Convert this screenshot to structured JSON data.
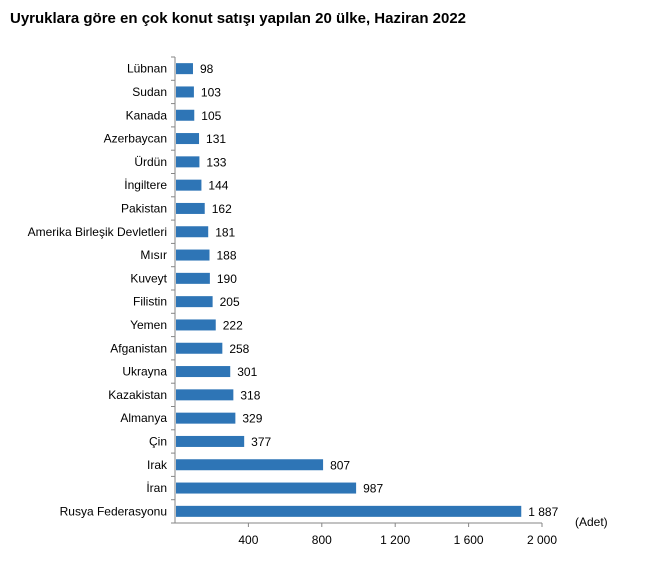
{
  "chart_data": {
    "type": "bar",
    "orientation": "horizontal",
    "title": "Uyruklara göre en çok konut satışı yapılan 20 ülke, Haziran 2022",
    "xlabel": "(Adet)",
    "ylabel": "",
    "categories": [
      "Lübnan",
      "Sudan",
      "Kanada",
      "Azerbaycan",
      "Ürdün",
      "İngiltere",
      "Pakistan",
      "Amerika Birleşik Devletleri",
      "Mısır",
      "Kuveyt",
      "Filistin",
      "Yemen",
      "Afganistan",
      "Ukrayna",
      "Kazakistan",
      "Almanya",
      "Çin",
      "Irak",
      "İran",
      "Rusya Federasyonu"
    ],
    "values": [
      98,
      103,
      105,
      131,
      133,
      144,
      162,
      181,
      188,
      190,
      205,
      222,
      258,
      301,
      318,
      329,
      377,
      807,
      987,
      1887
    ],
    "value_labels": [
      "98",
      "103",
      "105",
      "131",
      "133",
      "144",
      "162",
      "181",
      "188",
      "190",
      "205",
      "222",
      "258",
      "301",
      "318",
      "329",
      "377",
      "807",
      "987",
      "1 887"
    ],
    "xlim": [
      0,
      2000
    ],
    "xticks": [
      400,
      800,
      1200,
      1600,
      2000
    ],
    "xtick_labels": [
      "400",
      "800",
      "1 200",
      "1 600",
      "2 000"
    ],
    "grid": false,
    "legend": "none",
    "bar_color": "#2e75b6",
    "axis_color": "#868686"
  }
}
